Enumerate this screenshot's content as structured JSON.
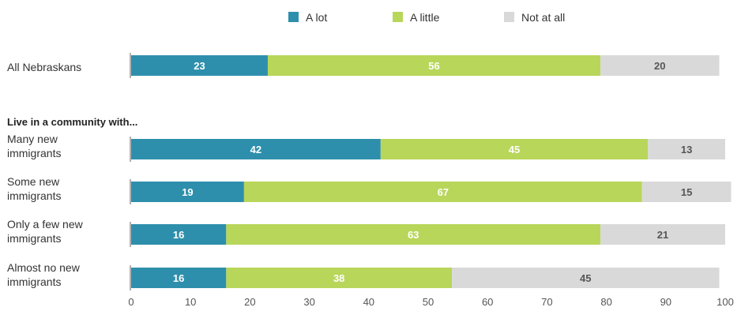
{
  "chart_data": {
    "type": "bar",
    "orientation": "horizontal",
    "stacked": true,
    "legend_position": "top",
    "grid": false,
    "xlim": [
      0,
      100
    ],
    "xticks": [
      0,
      10,
      20,
      30,
      40,
      50,
      60,
      70,
      80,
      90,
      100
    ],
    "group_label": "Live in a community with...",
    "series": [
      {
        "name": "A lot",
        "color": "#2e8fac",
        "label_color": "#ffffff"
      },
      {
        "name": "A little",
        "color": "#b8d65a",
        "label_color": "#ffffff"
      },
      {
        "name": "Not at all",
        "color": "#d9d9d9",
        "label_color": "#555555"
      }
    ],
    "categories": [
      {
        "label": [
          "All Nebraskans"
        ],
        "values": [
          23,
          56,
          20
        ]
      },
      {
        "label": [
          "Many new",
          "immigrants"
        ],
        "values": [
          42,
          45,
          13
        ]
      },
      {
        "label": [
          "Some new",
          "immigrants"
        ],
        "values": [
          19,
          67,
          15
        ]
      },
      {
        "label": [
          "Only a few new",
          "immigrants"
        ],
        "values": [
          16,
          63,
          21
        ]
      },
      {
        "label": [
          "Almost no new",
          "immigrants"
        ],
        "values": [
          16,
          38,
          45
        ]
      }
    ]
  }
}
